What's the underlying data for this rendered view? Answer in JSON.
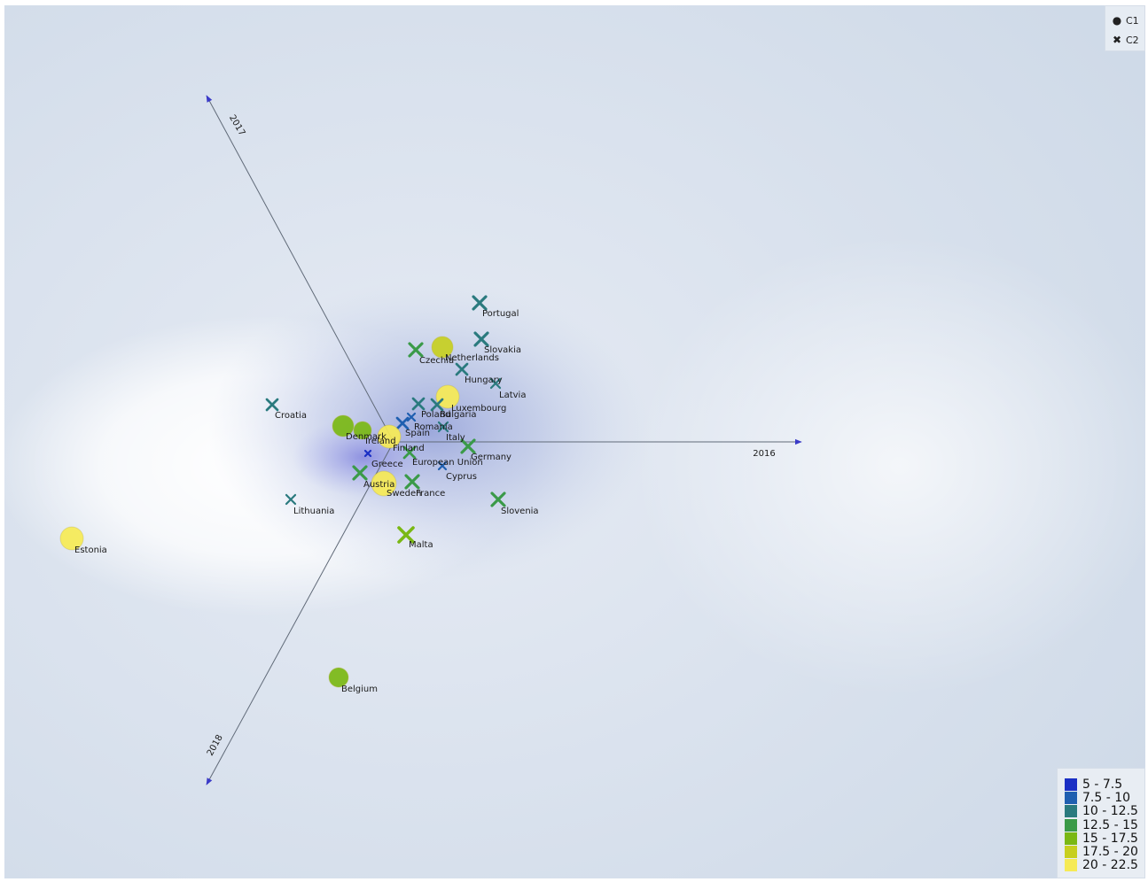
{
  "chart_data": {
    "type": "scatter",
    "title": "",
    "axes": [
      {
        "label": "2016",
        "direction": "right"
      },
      {
        "label": "2017",
        "direction": "upper-left"
      },
      {
        "label": "2018",
        "direction": "lower-left"
      }
    ],
    "legend": {
      "placement": "top-right",
      "series": [
        {
          "name": "C1",
          "symbol": "circle"
        },
        {
          "name": "C2",
          "symbol": "cross"
        }
      ]
    },
    "color_scale": {
      "placement": "bottom-right",
      "ranges": [
        {
          "label": "5 - 7.5",
          "color": "#1a2fc4"
        },
        {
          "label": "7.5 - 10",
          "color": "#1f5fb0"
        },
        {
          "label": "10 - 12.5",
          "color": "#2a7a7e"
        },
        {
          "label": "12.5 - 15",
          "color": "#3a9a48"
        },
        {
          "label": "15 - 17.5",
          "color": "#7ab814"
        },
        {
          "label": "17.5 - 20",
          "color": "#c7cf1f"
        },
        {
          "label": "20 - 22.5",
          "color": "#f6ea55"
        }
      ]
    },
    "points": [
      {
        "label": "Portugal",
        "cluster": "C2",
        "range": 2
      },
      {
        "label": "Slovakia",
        "cluster": "C2",
        "range": 2
      },
      {
        "label": "Czechia",
        "cluster": "C2",
        "range": 3
      },
      {
        "label": "Netherlands",
        "cluster": "C1",
        "range": 5
      },
      {
        "label": "Hungary",
        "cluster": "C2",
        "range": 2
      },
      {
        "label": "Latvia",
        "cluster": "C2",
        "range": 2
      },
      {
        "label": "Luxembourg",
        "cluster": "C1",
        "range": 6
      },
      {
        "label": "Bulgaria",
        "cluster": "C2",
        "range": 2
      },
      {
        "label": "Poland",
        "cluster": "C2",
        "range": 2
      },
      {
        "label": "Romania",
        "cluster": "C2",
        "range": 1
      },
      {
        "label": "Spain",
        "cluster": "C2",
        "range": 1
      },
      {
        "label": "Italy",
        "cluster": "C2",
        "range": 2
      },
      {
        "label": "Croatia",
        "cluster": "C2",
        "range": 2
      },
      {
        "label": "Denmark",
        "cluster": "C1",
        "range": 4
      },
      {
        "label": "Ireland",
        "cluster": "C1",
        "range": 4
      },
      {
        "label": "Finland",
        "cluster": "C1",
        "range": 6
      },
      {
        "label": "Germany",
        "cluster": "C2",
        "range": 3
      },
      {
        "label": "European Union",
        "cluster": "C2",
        "range": 3
      },
      {
        "label": "Greece",
        "cluster": "C2",
        "range": 0
      },
      {
        "label": "Cyprus",
        "cluster": "C2",
        "range": 1
      },
      {
        "label": "Austria",
        "cluster": "C1",
        "range": 6
      },
      {
        "label": "Sweden",
        "cluster": "C2",
        "range": 3
      },
      {
        "label": "France",
        "cluster": "C2",
        "range": 3
      },
      {
        "label": "Slovenia",
        "cluster": "C2",
        "range": 3
      },
      {
        "label": "Lithuania",
        "cluster": "C2",
        "range": 2
      },
      {
        "label": "Malta",
        "cluster": "C2",
        "range": 4
      },
      {
        "label": "Estonia",
        "cluster": "C1",
        "range": 6
      },
      {
        "label": "Belgium",
        "cluster": "C1",
        "range": 4
      }
    ]
  }
}
